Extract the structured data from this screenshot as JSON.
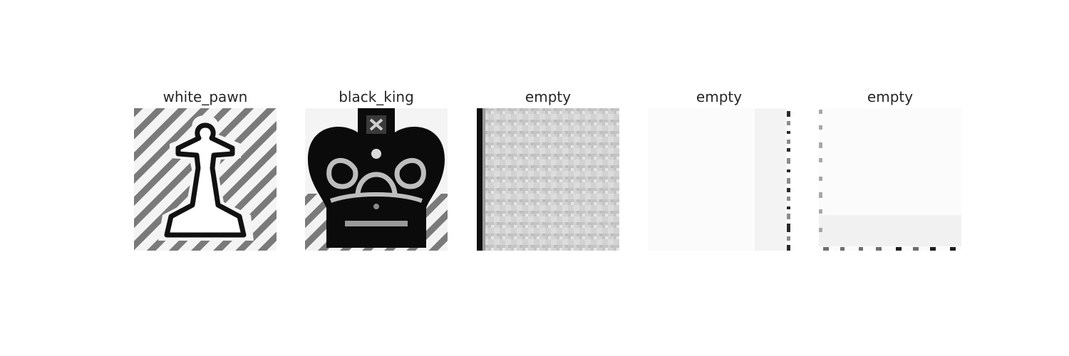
{
  "panels": [
    {
      "label": "white_pawn"
    },
    {
      "label": "black_king"
    },
    {
      "label": "empty"
    },
    {
      "label": "empty"
    },
    {
      "label": "empty"
    }
  ]
}
